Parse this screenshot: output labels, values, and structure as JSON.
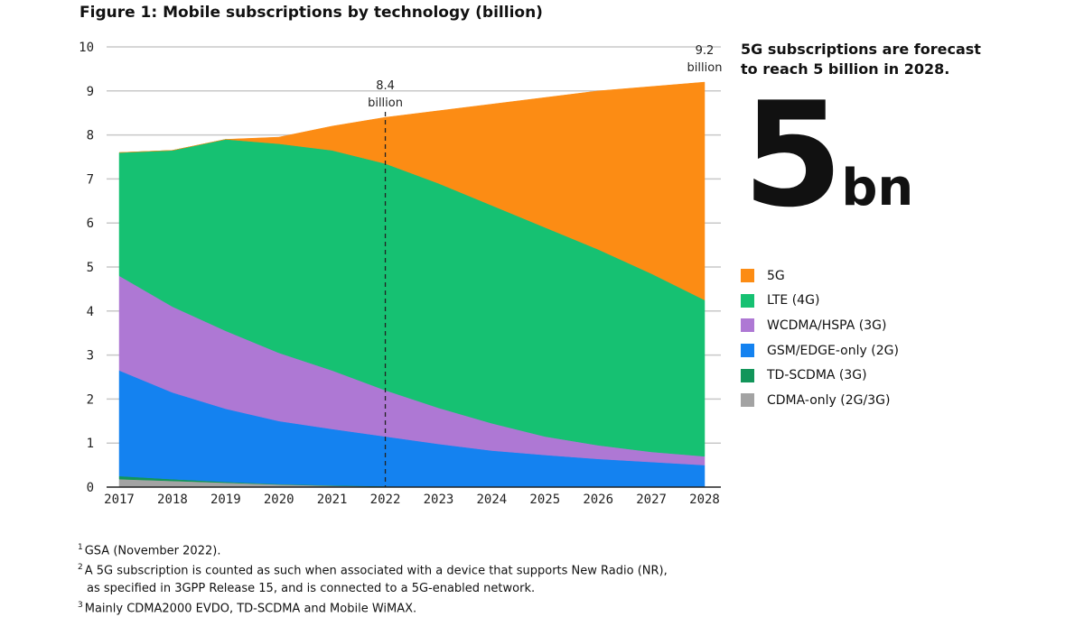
{
  "chart_data": {
    "type": "area",
    "stacked": true,
    "title": "Figure 1: Mobile subscriptions by technology (billion)",
    "x": [
      2017,
      2018,
      2019,
      2020,
      2021,
      2022,
      2023,
      2024,
      2025,
      2026,
      2027,
      2028
    ],
    "ylim": [
      0,
      10
    ],
    "yticks": [
      0,
      1,
      2,
      3,
      4,
      5,
      6,
      7,
      8,
      9,
      10
    ],
    "grid": true,
    "legend_placement": "right",
    "series": [
      {
        "name": "CDMA-only (2G/3G)",
        "color": "#a3a3a3",
        "values": [
          0.18,
          0.14,
          0.1,
          0.06,
          0.03,
          0.01,
          0,
          0,
          0,
          0,
          0,
          0
        ]
      },
      {
        "name": "TD-SCDMA (3G)",
        "color": "#12955a",
        "values": [
          0.07,
          0.04,
          0.02,
          0.01,
          0.01,
          0.01,
          0,
          0,
          0,
          0,
          0,
          0
        ]
      },
      {
        "name": "GSM/EDGE-only (2G)",
        "color": "#1482f0",
        "values": [
          2.4,
          1.97,
          1.66,
          1.43,
          1.28,
          1.13,
          0.98,
          0.83,
          0.73,
          0.64,
          0.57,
          0.5
        ]
      },
      {
        "name": "WCDMA/HSPA (3G)",
        "color": "#ae78d4",
        "values": [
          2.15,
          1.95,
          1.77,
          1.55,
          1.33,
          1.05,
          0.82,
          0.62,
          0.42,
          0.31,
          0.23,
          0.2
        ]
      },
      {
        "name": "LTE (4G)",
        "color": "#16c172",
        "values": [
          2.8,
          3.55,
          4.35,
          4.75,
          5.0,
          5.15,
          5.1,
          4.95,
          4.75,
          4.45,
          4.05,
          3.55
        ]
      },
      {
        "name": "5G",
        "color": "#fc8c14",
        "values": [
          0,
          0,
          0,
          0.15,
          0.55,
          1.05,
          1.65,
          2.3,
          2.95,
          3.6,
          4.25,
          4.95
        ]
      }
    ],
    "annotations": [
      {
        "x": 2022,
        "value_line1": "8.4",
        "value_line2": "billion",
        "marker": "dashed-vertical-line"
      },
      {
        "x": 2028,
        "value_line1": "9.2",
        "value_line2": "billion"
      }
    ]
  },
  "callout": {
    "headline_line1": "5G subscriptions are forecast",
    "headline_line2": "to reach 5 billion in 2028.",
    "big_number": "5",
    "big_unit": "bn"
  },
  "legend_order": [
    5,
    4,
    3,
    2,
    1,
    0
  ],
  "footnotes": [
    {
      "mark": "1",
      "text": "GSA (November 2022)."
    },
    {
      "mark": "2",
      "text": "A 5G subscription is counted as such when associated with a device that supports New Radio (NR),"
    },
    {
      "mark": "",
      "text": "as specified in 3GPP Release 15, and is connected to a 5G-enabled network."
    },
    {
      "mark": "3",
      "text": "Mainly CDMA2000 EVDO, TD-SCDMA and Mobile WiMAX."
    }
  ]
}
